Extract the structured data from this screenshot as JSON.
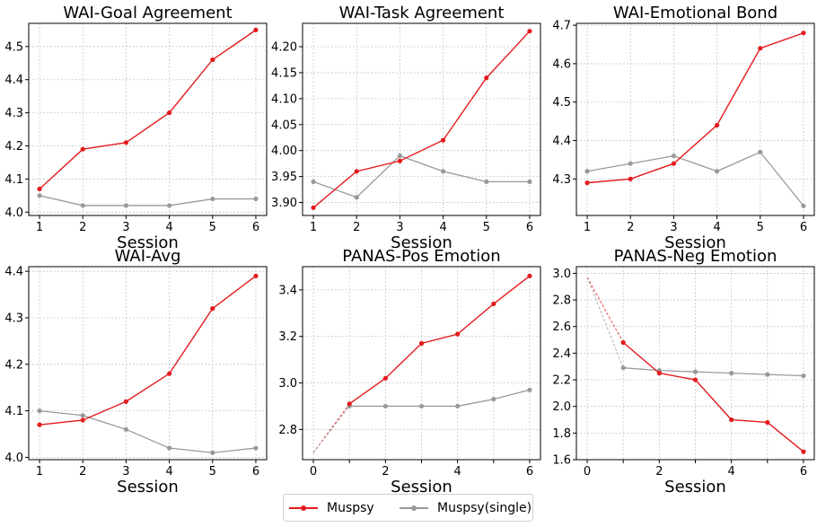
{
  "legend": {
    "items": [
      {
        "label": "Muspsy",
        "color": "#e31a1c"
      },
      {
        "label": "Muspsy(single)",
        "color": "#999999"
      }
    ]
  },
  "chart_data": [
    {
      "type": "line",
      "title": "WAI-Goal Agreement",
      "xlabel": "Session",
      "x": [
        1,
        2,
        3,
        4,
        5,
        6
      ],
      "xticks": [
        1,
        2,
        3,
        4,
        5,
        6
      ],
      "ylim": [
        3.99,
        4.57
      ],
      "yticks": [
        "4.0",
        "4.1",
        "4.2",
        "4.3",
        "4.4",
        "4.5"
      ],
      "grid": true,
      "series": [
        {
          "name": "Muspsy",
          "color": "#e31a1c",
          "values": [
            4.07,
            4.19,
            4.21,
            4.3,
            4.46,
            4.55
          ]
        },
        {
          "name": "Muspsy(single)",
          "color": "#999999",
          "values": [
            4.05,
            4.02,
            4.02,
            4.02,
            4.04,
            4.04
          ]
        }
      ]
    },
    {
      "type": "line",
      "title": "WAI-Task Agreement",
      "xlabel": "Session",
      "x": [
        1,
        2,
        3,
        4,
        5,
        6
      ],
      "xticks": [
        1,
        2,
        3,
        4,
        5,
        6
      ],
      "ylim": [
        3.875,
        4.245
      ],
      "yticks": [
        "3.90",
        "3.95",
        "4.00",
        "4.05",
        "4.10",
        "4.15",
        "4.20"
      ],
      "grid": true,
      "series": [
        {
          "name": "Muspsy",
          "color": "#e31a1c",
          "values": [
            3.89,
            3.96,
            3.98,
            4.02,
            4.14,
            4.23
          ]
        },
        {
          "name": "Muspsy(single)",
          "color": "#999999",
          "values": [
            3.94,
            3.91,
            3.99,
            3.96,
            3.94,
            3.94
          ]
        }
      ]
    },
    {
      "type": "line",
      "title": "WAI-Emotional Bond",
      "xlabel": "Session",
      "x": [
        1,
        2,
        3,
        4,
        5,
        6
      ],
      "xticks": [
        1,
        2,
        3,
        4,
        5,
        6
      ],
      "ylim": [
        4.205,
        4.705
      ],
      "yticks": [
        "4.3",
        "4.4",
        "4.5",
        "4.6",
        "4.7"
      ],
      "grid": true,
      "series": [
        {
          "name": "Muspsy",
          "color": "#e31a1c",
          "values": [
            4.29,
            4.3,
            4.34,
            4.44,
            4.64,
            4.68
          ]
        },
        {
          "name": "Muspsy(single)",
          "color": "#999999",
          "values": [
            4.32,
            4.34,
            4.36,
            4.32,
            4.37,
            4.23
          ]
        }
      ]
    },
    {
      "type": "line",
      "title": "WAI-Avg",
      "xlabel": "Session",
      "x": [
        1,
        2,
        3,
        4,
        5,
        6
      ],
      "xticks": [
        1,
        2,
        3,
        4,
        5,
        6
      ],
      "ylim": [
        3.995,
        4.41
      ],
      "yticks": [
        "4.0",
        "4.1",
        "4.2",
        "4.3",
        "4.4"
      ],
      "grid": true,
      "series": [
        {
          "name": "Muspsy",
          "color": "#e31a1c",
          "values": [
            4.07,
            4.08,
            4.12,
            4.18,
            4.32,
            4.39
          ]
        },
        {
          "name": "Muspsy(single)",
          "color": "#999999",
          "values": [
            4.1,
            4.09,
            4.06,
            4.02,
            4.01,
            4.02
          ]
        }
      ]
    },
    {
      "type": "line",
      "title": "PANAS-Pos Emotion",
      "xlabel": "Session",
      "x": [
        1,
        2,
        3,
        4,
        5,
        6
      ],
      "xticks": [
        0,
        1,
        2,
        3,
        4,
        5,
        6
      ],
      "xtick_labels": [
        "0",
        "",
        "2",
        "",
        "4",
        "",
        "6"
      ],
      "ylim": [
        2.67,
        3.5
      ],
      "yticks": [
        "2.8",
        "3.0",
        "3.2",
        "3.4"
      ],
      "grid": true,
      "baseline": {
        "x": 0,
        "value": 2.7,
        "style": "dashed"
      },
      "series": [
        {
          "name": "Muspsy",
          "color": "#e31a1c",
          "values": [
            2.91,
            3.02,
            3.17,
            3.21,
            3.34,
            3.46
          ]
        },
        {
          "name": "Muspsy(single)",
          "color": "#999999",
          "values": [
            2.9,
            2.9,
            2.9,
            2.9,
            2.93,
            2.97
          ]
        }
      ]
    },
    {
      "type": "line",
      "title": "PANAS-Neg Emotion",
      "xlabel": "Session",
      "x": [
        1,
        2,
        3,
        4,
        5,
        6
      ],
      "xticks": [
        0,
        1,
        2,
        3,
        4,
        5,
        6
      ],
      "xtick_labels": [
        "0",
        "",
        "2",
        "",
        "4",
        "",
        "6"
      ],
      "ylim": [
        1.6,
        3.05
      ],
      "yticks": [
        "1.6",
        "1.8",
        "2.0",
        "2.2",
        "2.4",
        "2.6",
        "2.8",
        "3.0"
      ],
      "grid": true,
      "baseline": {
        "x": 0,
        "value": 2.97,
        "style": "dashed"
      },
      "series": [
        {
          "name": "Muspsy",
          "color": "#e31a1c",
          "values": [
            2.48,
            2.25,
            2.2,
            1.9,
            1.88,
            1.66
          ]
        },
        {
          "name": "Muspsy(single)",
          "color": "#999999",
          "values": [
            2.29,
            2.27,
            2.26,
            2.25,
            2.24,
            2.23
          ]
        }
      ]
    }
  ]
}
